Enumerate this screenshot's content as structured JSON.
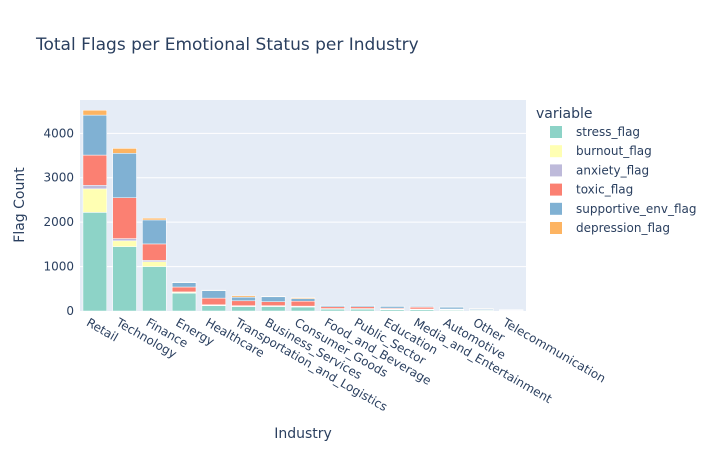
{
  "chart_data": {
    "type": "bar",
    "barmode": "stack",
    "title": "Total Flags per Emotional Status per Industry",
    "xlabel": "Industry",
    "ylabel": "Flag Count",
    "ylim": [
      0,
      4750
    ],
    "yticks": [
      0,
      1000,
      2000,
      3000,
      4000
    ],
    "yticklabels": [
      "0",
      "1000",
      "2000",
      "3000",
      "4000"
    ],
    "grid": true,
    "legend_title": "variable",
    "legend_position": "right",
    "categories": [
      "Retail",
      "Technology",
      "Finance",
      "Energy",
      "Healthcare",
      "Transportation_and_Logistics",
      "Business_Services",
      "Consumer_Goods",
      "Food_and_Beverage",
      "Public_Sector",
      "Education",
      "Media_and_Entertainment",
      "Automotive",
      "Other",
      "Telecommunication"
    ],
    "series": [
      {
        "name": "stress_flag",
        "color": "#8dd3c7",
        "values": [
          2220,
          1450,
          1000,
          400,
          120,
          100,
          100,
          90,
          40,
          40,
          30,
          30,
          20,
          15,
          8
        ]
      },
      {
        "name": "burnout_flag",
        "color": "#ffffb3",
        "values": [
          530,
          130,
          110,
          20,
          10,
          10,
          10,
          10,
          5,
          5,
          5,
          5,
          5,
          3,
          2
        ]
      },
      {
        "name": "anxiety_flag",
        "color": "#bebada",
        "values": [
          80,
          50,
          30,
          10,
          10,
          10,
          10,
          10,
          10,
          10,
          10,
          10,
          10,
          5,
          3
        ]
      },
      {
        "name": "toxic_flag",
        "color": "#fb8072",
        "values": [
          680,
          920,
          370,
          110,
          150,
          110,
          90,
          110,
          40,
          40,
          20,
          40,
          10,
          10,
          5
        ]
      },
      {
        "name": "supportive_env_flag",
        "color": "#80b1d3",
        "values": [
          900,
          1000,
          540,
          100,
          170,
          80,
          110,
          60,
          30,
          30,
          40,
          20,
          40,
          20,
          10
        ]
      },
      {
        "name": "depression_flag",
        "color": "#fdb462",
        "values": [
          110,
          110,
          40,
          10,
          10,
          30,
          10,
          20,
          5,
          5,
          5,
          5,
          5,
          3,
          2
        ]
      }
    ]
  }
}
